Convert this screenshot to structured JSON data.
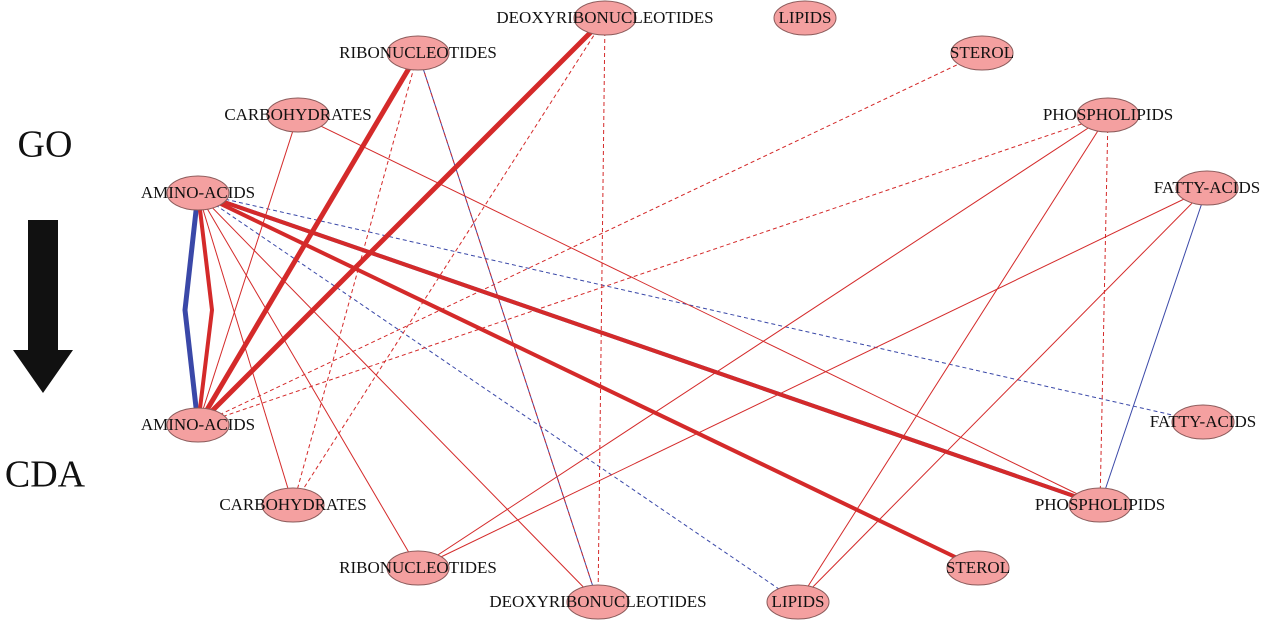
{
  "side_labels": {
    "top": "GO",
    "bottom": "CDA"
  },
  "nodes": [
    {
      "label": "DEOXYRIBONUCLEOTIDES"
    },
    {
      "label": "LIPIDS"
    },
    {
      "label": "RIBONUCLEOTIDES"
    },
    {
      "label": "STEROL"
    },
    {
      "label": "CARBOHYDRATES"
    },
    {
      "label": "PHOSPHOLIPIDS"
    },
    {
      "label": "AMINO-ACIDS"
    },
    {
      "label": "FATTY-ACIDS"
    },
    {
      "label": "AMINO-ACIDS"
    },
    {
      "label": "FATTY-ACIDS"
    },
    {
      "label": "CARBOHYDRATES"
    },
    {
      "label": "PHOSPHOLIPIDS"
    },
    {
      "label": "RIBONUCLEOTIDES"
    },
    {
      "label": "STEROL"
    },
    {
      "label": "DEOXYRIBONUCLEOTIDES"
    },
    {
      "label": "LIPIDS"
    }
  ]
}
